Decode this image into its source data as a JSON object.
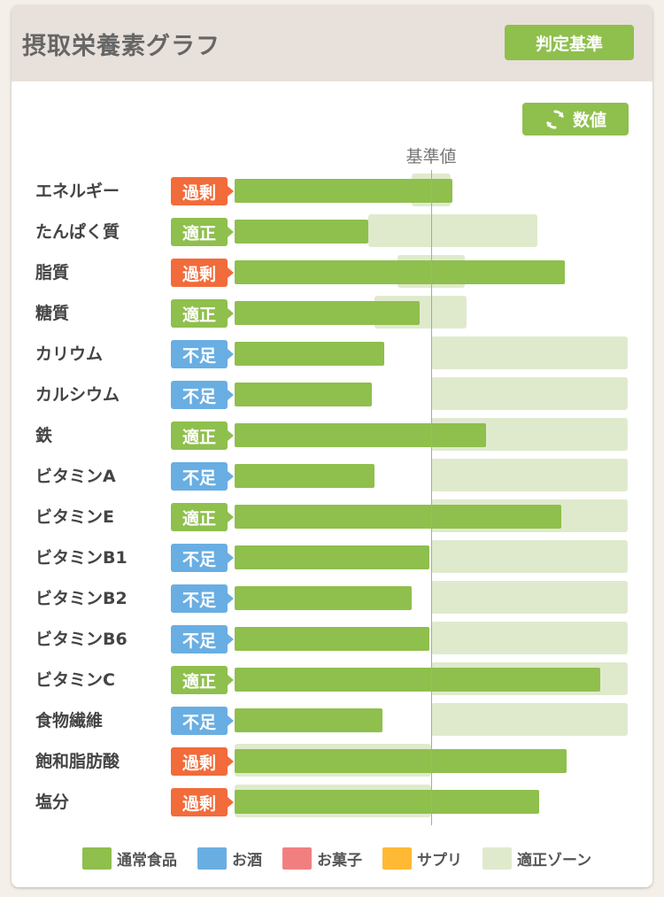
{
  "header": {
    "title": "摂取栄養素グラフ",
    "criteria_button": "判定基準"
  },
  "toolbar": {
    "values_button": "数値"
  },
  "chart_data": {
    "type": "bar",
    "reference_label": "基準値",
    "scale_note": "bar values are relative to the reference value (基準値 = 1.0)",
    "rows": [
      {
        "label": "エネルギー",
        "status": "過剰",
        "status_type": "excess",
        "value": 1.11,
        "zone": [
          0.9,
          1.1
        ]
      },
      {
        "label": "たんぱく質",
        "status": "適正",
        "status_type": "proper",
        "value": 0.68,
        "zone": [
          0.68,
          1.54
        ]
      },
      {
        "label": "脂質",
        "status": "過剰",
        "status_type": "excess",
        "value": 1.68,
        "zone": [
          0.83,
          1.17
        ]
      },
      {
        "label": "糖質",
        "status": "適正",
        "status_type": "proper",
        "value": 0.94,
        "zone": [
          0.71,
          1.18
        ]
      },
      {
        "label": "カリウム",
        "status": "不足",
        "status_type": "low",
        "value": 0.76,
        "zone": [
          1.0,
          2.0
        ]
      },
      {
        "label": "カルシウム",
        "status": "不足",
        "status_type": "low",
        "value": 0.7,
        "zone": [
          1.0,
          2.0
        ]
      },
      {
        "label": "鉄",
        "status": "適正",
        "status_type": "proper",
        "value": 1.28,
        "zone": [
          1.0,
          2.0
        ]
      },
      {
        "label": "ビタミンA",
        "status": "不足",
        "status_type": "low",
        "value": 0.71,
        "zone": [
          1.0,
          2.0
        ]
      },
      {
        "label": "ビタミンE",
        "status": "適正",
        "status_type": "proper",
        "value": 1.66,
        "zone": [
          1.0,
          2.0
        ]
      },
      {
        "label": "ビタミンB1",
        "status": "不足",
        "status_type": "low",
        "value": 0.99,
        "zone": [
          1.0,
          2.0
        ]
      },
      {
        "label": "ビタミンB2",
        "status": "不足",
        "status_type": "low",
        "value": 0.9,
        "zone": [
          1.0,
          2.0
        ]
      },
      {
        "label": "ビタミンB6",
        "status": "不足",
        "status_type": "low",
        "value": 0.99,
        "zone": [
          1.0,
          2.0
        ]
      },
      {
        "label": "ビタミンC",
        "status": "適正",
        "status_type": "proper",
        "value": 1.86,
        "zone": [
          1.0,
          2.0
        ]
      },
      {
        "label": "食物繊維",
        "status": "不足",
        "status_type": "low",
        "value": 0.75,
        "zone": [
          1.0,
          2.0
        ]
      },
      {
        "label": "飽和脂肪酸",
        "status": "過剰",
        "status_type": "excess",
        "value": 1.69,
        "zone": [
          0.0,
          1.0
        ]
      },
      {
        "label": "塩分",
        "status": "過剰",
        "status_type": "excess",
        "value": 1.55,
        "zone": [
          0.0,
          1.0
        ]
      }
    ]
  },
  "legend": [
    {
      "label": "通常食品",
      "color": "#8fbf4d"
    },
    {
      "label": "お酒",
      "color": "#69aee3"
    },
    {
      "label": "お菓子",
      "color": "#f27f80"
    },
    {
      "label": "サプリ",
      "color": "#ffb935"
    },
    {
      "label": "適正ゾーン",
      "color": "#dfeacd"
    }
  ],
  "colors": {
    "accent": "#8fbf4d",
    "excess": "#f26b3a",
    "low": "#69aee3",
    "zone": "#dfeacd"
  }
}
